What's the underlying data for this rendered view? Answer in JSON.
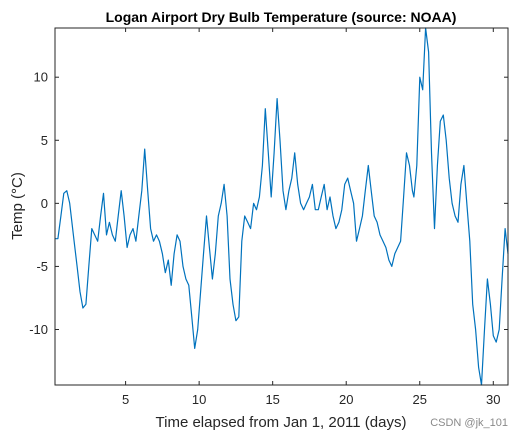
{
  "chart_data": {
    "type": "line",
    "title": "Logan Airport Dry Bulb Temperature (source: NOAA)",
    "xlabel": "Time elapsed from Jan 1, 2011 (days)",
    "ylabel": "Temp (°C)",
    "xlim": [
      0.2,
      31
    ],
    "ylim": [
      -14.4,
      13.9
    ],
    "xticks": [
      5,
      10,
      15,
      20,
      25,
      30
    ],
    "yticks": [
      -10,
      -5,
      0,
      5,
      10
    ],
    "grid": false,
    "color": "#0072BD",
    "series": [
      {
        "x": [
          0.2,
          0.4,
          0.6,
          0.8,
          1.0,
          1.2,
          1.5,
          1.7,
          1.9,
          2.1,
          2.3,
          2.5,
          2.7,
          2.9,
          3.1,
          3.3,
          3.5,
          3.7,
          3.9,
          4.1,
          4.3,
          4.5,
          4.7,
          4.9,
          5.1,
          5.3,
          5.5,
          5.7,
          5.9,
          6.1,
          6.3,
          6.5,
          6.7,
          6.9,
          7.1,
          7.3,
          7.5,
          7.7,
          7.9,
          8.1,
          8.3,
          8.5,
          8.7,
          8.9,
          9.1,
          9.3,
          9.5,
          9.7,
          9.9,
          10.1,
          10.3,
          10.5,
          10.7,
          10.9,
          11.1,
          11.3,
          11.5,
          11.7,
          11.9,
          12.1,
          12.3,
          12.5,
          12.7,
          12.9,
          13.1,
          13.3,
          13.5,
          13.7,
          13.9,
          14.1,
          14.3,
          14.5,
          14.7,
          14.9,
          15.1,
          15.3,
          15.5,
          15.7,
          15.9,
          16.1,
          16.3,
          16.5,
          16.7,
          16.9,
          17.1,
          17.3,
          17.5,
          17.7,
          17.9,
          18.1,
          18.3,
          18.5,
          18.7,
          18.9,
          19.1,
          19.3,
          19.5,
          19.7,
          19.9,
          20.1,
          20.3,
          20.5,
          20.7,
          20.9,
          21.1,
          21.3,
          21.5,
          21.7,
          21.9,
          22.1,
          22.3,
          22.5,
          22.7,
          22.9,
          23.1,
          23.3,
          23.5,
          23.7,
          23.9,
          24.1,
          24.3,
          24.5,
          24.6,
          24.8,
          25.0,
          25.2,
          25.4,
          25.6,
          25.8,
          26.0,
          26.2,
          26.4,
          26.6,
          26.8,
          27.0,
          27.2,
          27.4,
          27.6,
          27.8,
          28.0,
          28.2,
          28.4,
          28.6,
          28.8,
          29.0,
          29.2,
          29.4,
          29.6,
          29.8,
          30.0,
          30.2,
          30.4,
          30.6,
          30.8,
          31.0
        ],
        "y": [
          -2.8,
          -2.8,
          -1.0,
          0.8,
          1.0,
          0.0,
          -3.0,
          -5.0,
          -7.0,
          -8.3,
          -8.0,
          -5.0,
          -2.0,
          -2.5,
          -3.0,
          -1.0,
          0.8,
          -2.5,
          -1.5,
          -2.5,
          -3.0,
          -1.0,
          1.0,
          -1.0,
          -3.5,
          -2.5,
          -2.0,
          -3.0,
          -1.0,
          1.0,
          4.3,
          1.0,
          -2.0,
          -3.0,
          -2.5,
          -3.0,
          -4.0,
          -5.5,
          -4.5,
          -6.5,
          -4.0,
          -2.5,
          -3.0,
          -5.0,
          -6.0,
          -6.5,
          -9.0,
          -11.5,
          -10.0,
          -7.0,
          -4.0,
          -1.0,
          -3.5,
          -6.0,
          -4.0,
          -1.0,
          0.0,
          1.5,
          -1.0,
          -6.0,
          -8.0,
          -9.3,
          -9.0,
          -3.0,
          -1.0,
          -1.5,
          -2.0,
          0.0,
          -0.5,
          0.5,
          3.0,
          7.5,
          4.0,
          0.5,
          4.0,
          8.3,
          5.0,
          1.0,
          -0.5,
          1.0,
          2.0,
          4.0,
          1.5,
          0.0,
          -0.5,
          0.0,
          0.5,
          1.5,
          -0.5,
          -0.5,
          0.5,
          1.5,
          -0.5,
          0.5,
          -1.0,
          -2.0,
          -1.5,
          -0.5,
          1.5,
          2.0,
          1.0,
          0.0,
          -3.0,
          -2.0,
          -1.0,
          1.0,
          3.0,
          1.0,
          -1.0,
          -1.5,
          -2.5,
          -3.0,
          -3.5,
          -4.5,
          -5.0,
          -4.0,
          -3.5,
          -3.0,
          0.5,
          4.0,
          3.0,
          1.0,
          0.5,
          3.0,
          10.0,
          9.0,
          13.9,
          12.0,
          4.0,
          -2.0,
          3.0,
          6.5,
          7.0,
          5.0,
          2.0,
          0.0,
          -1.0,
          -1.5,
          1.5,
          3.0,
          0.0,
          -3.0,
          -8.0,
          -10.0,
          -13.0,
          -14.4,
          -10.0,
          -6.0,
          -8.0,
          -10.5,
          -11.0,
          -10.0,
          -6.0,
          -2.0,
          -4.0
        ]
      }
    ]
  },
  "watermark": "CSDN @jk_101"
}
